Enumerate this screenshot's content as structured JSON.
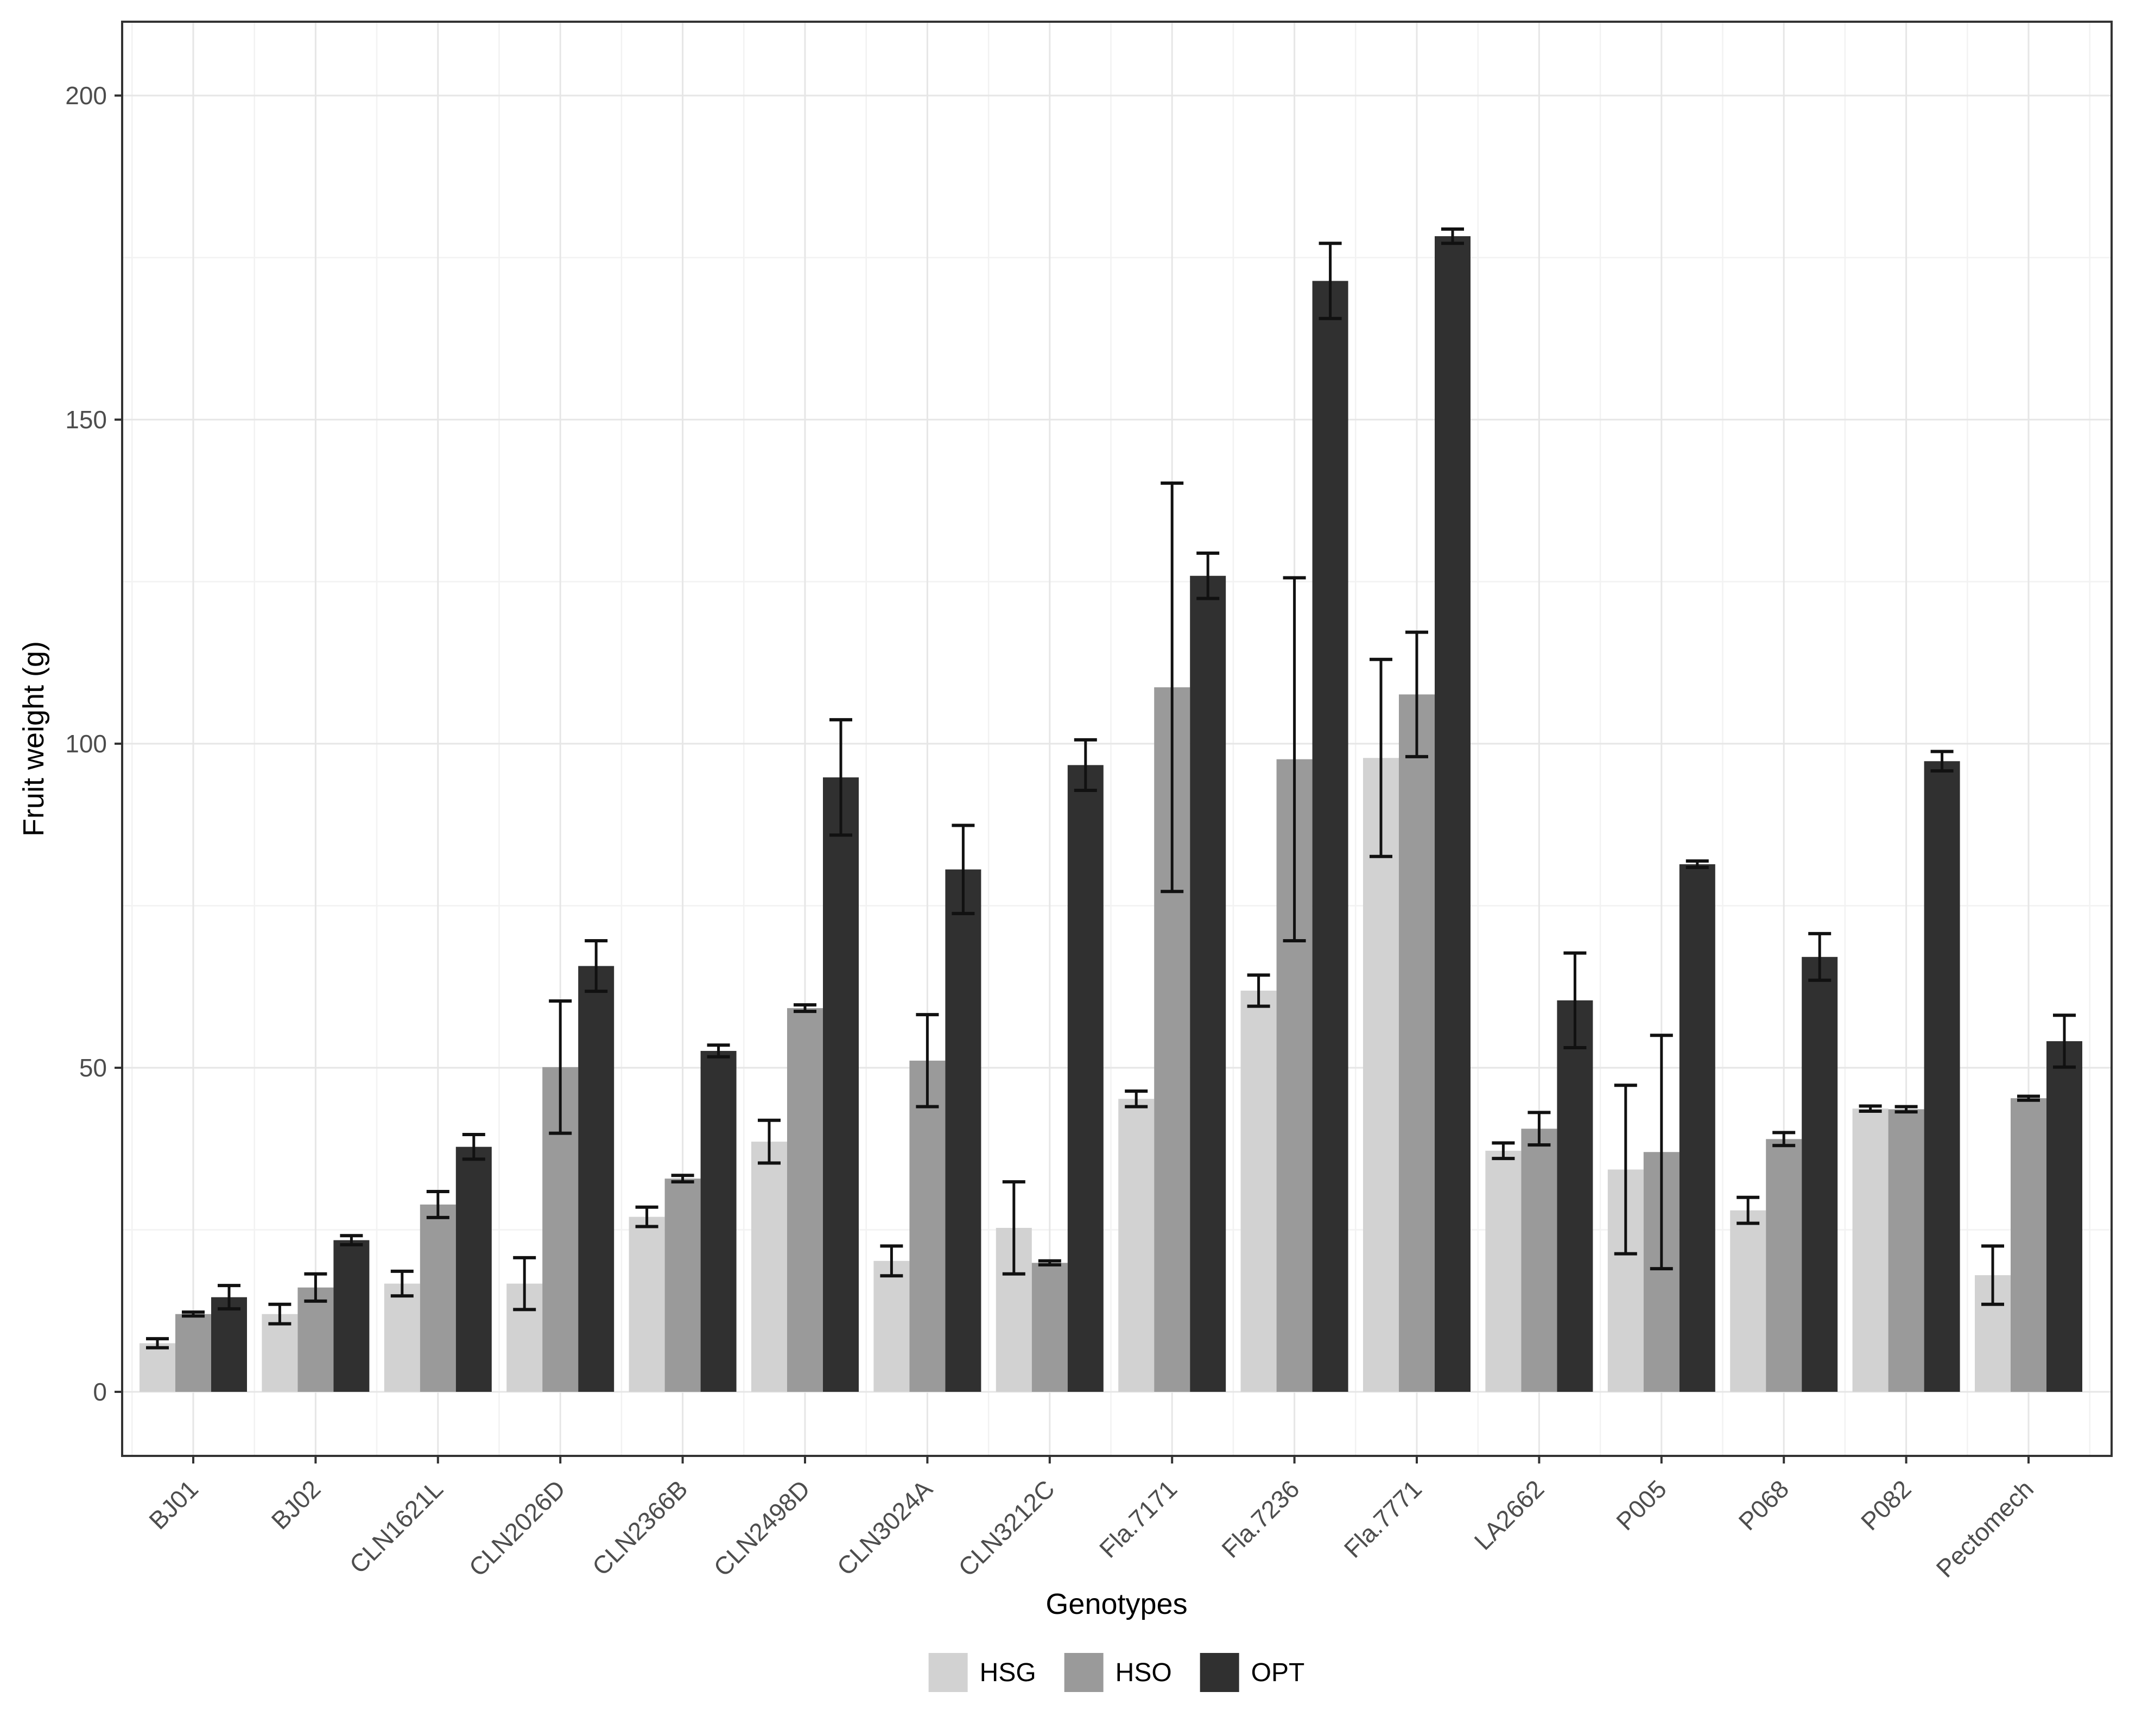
{
  "chart_data": {
    "type": "bar",
    "subtype": "grouped-with-error-bars",
    "title": "",
    "xlabel": "Genotypes",
    "ylabel": "Fruit weight (g)",
    "ylim": [
      0,
      200
    ],
    "yticks": [
      0,
      50,
      100,
      150,
      200
    ],
    "minor_yticks": [
      25,
      75,
      125,
      175
    ],
    "grid": "on",
    "legend_position": "bottom",
    "categories": [
      "BJ01",
      "BJ02",
      "CLN1621L",
      "CLN2026D",
      "CLN2366B",
      "CLN2498D",
      "CLN3024A",
      "CLN3212C",
      "Fla.7171",
      "Fla.7236",
      "Fla.7771",
      "LA2662",
      "P005",
      "P068",
      "P082",
      "Pectomech"
    ],
    "series": [
      {
        "name": "HSG",
        "color": "#d2d2d2",
        "values": [
          7.5,
          12.0,
          16.7,
          16.7,
          27.0,
          38.6,
          20.2,
          25.3,
          45.2,
          61.9,
          97.8,
          37.2,
          34.3,
          28.0,
          43.7,
          18.0
        ],
        "errors": [
          0.7,
          1.5,
          1.9,
          4.0,
          1.5,
          3.3,
          2.3,
          7.1,
          1.2,
          2.4,
          15.2,
          1.2,
          13.0,
          2.0,
          0.4,
          4.5
        ]
      },
      {
        "name": "HSO",
        "color": "#9a9a9a",
        "values": [
          12.0,
          16.1,
          28.9,
          50.1,
          32.9,
          59.2,
          51.1,
          19.9,
          108.7,
          97.6,
          107.6,
          40.6,
          37.0,
          39.0,
          43.6,
          45.3
        ],
        "errors": [
          0.3,
          2.1,
          2.0,
          10.2,
          0.5,
          0.5,
          7.1,
          0.3,
          31.5,
          28.0,
          9.6,
          2.5,
          18.0,
          1.0,
          0.4,
          0.3
        ]
      },
      {
        "name": "OPT",
        "color": "#303030",
        "values": [
          14.6,
          23.4,
          37.8,
          65.7,
          52.6,
          94.8,
          80.6,
          96.7,
          125.9,
          171.4,
          178.3,
          60.4,
          81.4,
          67.1,
          97.3,
          54.1
        ],
        "errors": [
          1.8,
          0.7,
          1.9,
          3.9,
          0.9,
          8.9,
          6.8,
          3.9,
          3.5,
          5.8,
          1.1,
          7.3,
          0.5,
          3.6,
          1.5,
          4.0
        ]
      }
    ],
    "colors": {
      "tick_label": "#4d4d4d",
      "panel_border": "#333333",
      "major_grid": "#e6e6e6",
      "minor_grid": "#f2f2f2",
      "error_bar": "#111111",
      "background": "#ffffff"
    }
  }
}
